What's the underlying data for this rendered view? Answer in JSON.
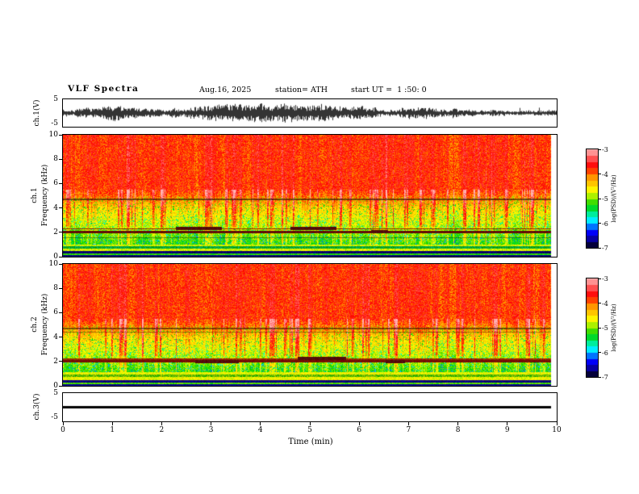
{
  "header": {
    "title": "VLF Spectra",
    "date": "Aug.16, 2025",
    "station": "station= ATH",
    "start_ut": "start UT =  1 :50: 0"
  },
  "waveform_top": {
    "channel_label": "ch.1(V)",
    "y_top": "5",
    "y_bottom": "-5"
  },
  "spectrogram1": {
    "channel_label": "ch.1",
    "y_axis_label": "Frequency (kHz)",
    "y_ticks": [
      "10",
      "8",
      "6",
      "4",
      "2",
      "0"
    ]
  },
  "spectrogram2": {
    "channel_label": "ch.2",
    "y_axis_label": "Frequency (kHz)",
    "y_ticks": [
      "10",
      "8",
      "6",
      "4",
      "2",
      "0"
    ]
  },
  "waveform_bottom": {
    "channel_label": "ch.3(V)",
    "y_top": "5",
    "y_bottom": "-5"
  },
  "colorbar": {
    "label": "log(PSD)/(V²/Hz)",
    "ticks": [
      "-3",
      "-4",
      "-5",
      "-6",
      "-7"
    ]
  },
  "x_axis": {
    "label": "Time (min)",
    "ticks": [
      "0",
      "1",
      "2",
      "3",
      "4",
      "5",
      "6",
      "7",
      "8",
      "9",
      "10"
    ]
  },
  "chart_data": {
    "type": "heatmap",
    "title": "VLF Spectra",
    "annotations": [
      "Aug.16, 2025",
      "station= ATH",
      "start UT =  1 :50: 0"
    ],
    "xlabel": "Time (min)",
    "x_range": [
      0,
      10
    ],
    "x_ticks": [
      0,
      1,
      2,
      3,
      4,
      5,
      6,
      7,
      8,
      9,
      10
    ],
    "data_extent_min": 9.9,
    "panels": [
      {
        "id": "ch1_waveform",
        "type": "line",
        "label": "ch.1(V)",
        "y_range": [
          -5,
          5
        ],
        "content": "dense broadband noise waveform oscillating about 0 V, amplitude roughly ±1 to ±4 V for the full 10 minutes"
      },
      {
        "id": "ch1_spectrogram",
        "type": "heatmap",
        "label": "ch.1",
        "ylabel": "Frequency (kHz)",
        "y_range": [
          0,
          10
        ],
        "y_ticks": [
          0,
          2,
          4,
          6,
          8,
          10
        ],
        "zlabel": "log(PSD)/(V²/Hz)",
        "z_range": [
          -7,
          -3
        ],
        "content": "high PSD (red/pink, ~-3.5) above ~5 kHz with vertical sferic streaks; yellow band 4-5.5 kHz; green (~-5) from 1-4 kHz with cyan speckle; saturated dark transmitter lines near 2 and 2.3 kHz (darker blobs near 2.5-3.2 and 4.7-5.6 min); thin dark line near 4.7 kHz; alternating green/black bands below 1 kHz"
      },
      {
        "id": "ch2_spectrogram",
        "type": "heatmap",
        "label": "ch.2",
        "ylabel": "Frequency (kHz)",
        "y_range": [
          0,
          10
        ],
        "y_ticks": [
          0,
          2,
          4,
          6,
          8,
          10
        ],
        "zlabel": "log(PSD)/(V²/Hz)",
        "z_range": [
          -7,
          -3
        ],
        "content": "same structure as ch.1: red above ~5 kHz, yellow transition band, green 1-4 kHz, dark narrowband lines near 2 kHz and 4.5-4.8 kHz, banded green/black structure below 1 kHz"
      },
      {
        "id": "ch3_waveform",
        "type": "line",
        "label": "ch.3(V)",
        "y_range": [
          -5,
          5
        ],
        "content": "flat black line at 0 V (no signal) ending near 9.9 min"
      }
    ],
    "colormap": {
      "value_range": [
        -7,
        -3
      ],
      "scale_low_to_high": [
        "#000000",
        "#0a0082",
        "#0000ff",
        "#00ffff",
        "#00d200",
        "#ffff00",
        "#ff9600",
        "#ff0000",
        "#ffb4b4"
      ]
    },
    "legend_position": "right colorbars, one per spectrogram"
  }
}
